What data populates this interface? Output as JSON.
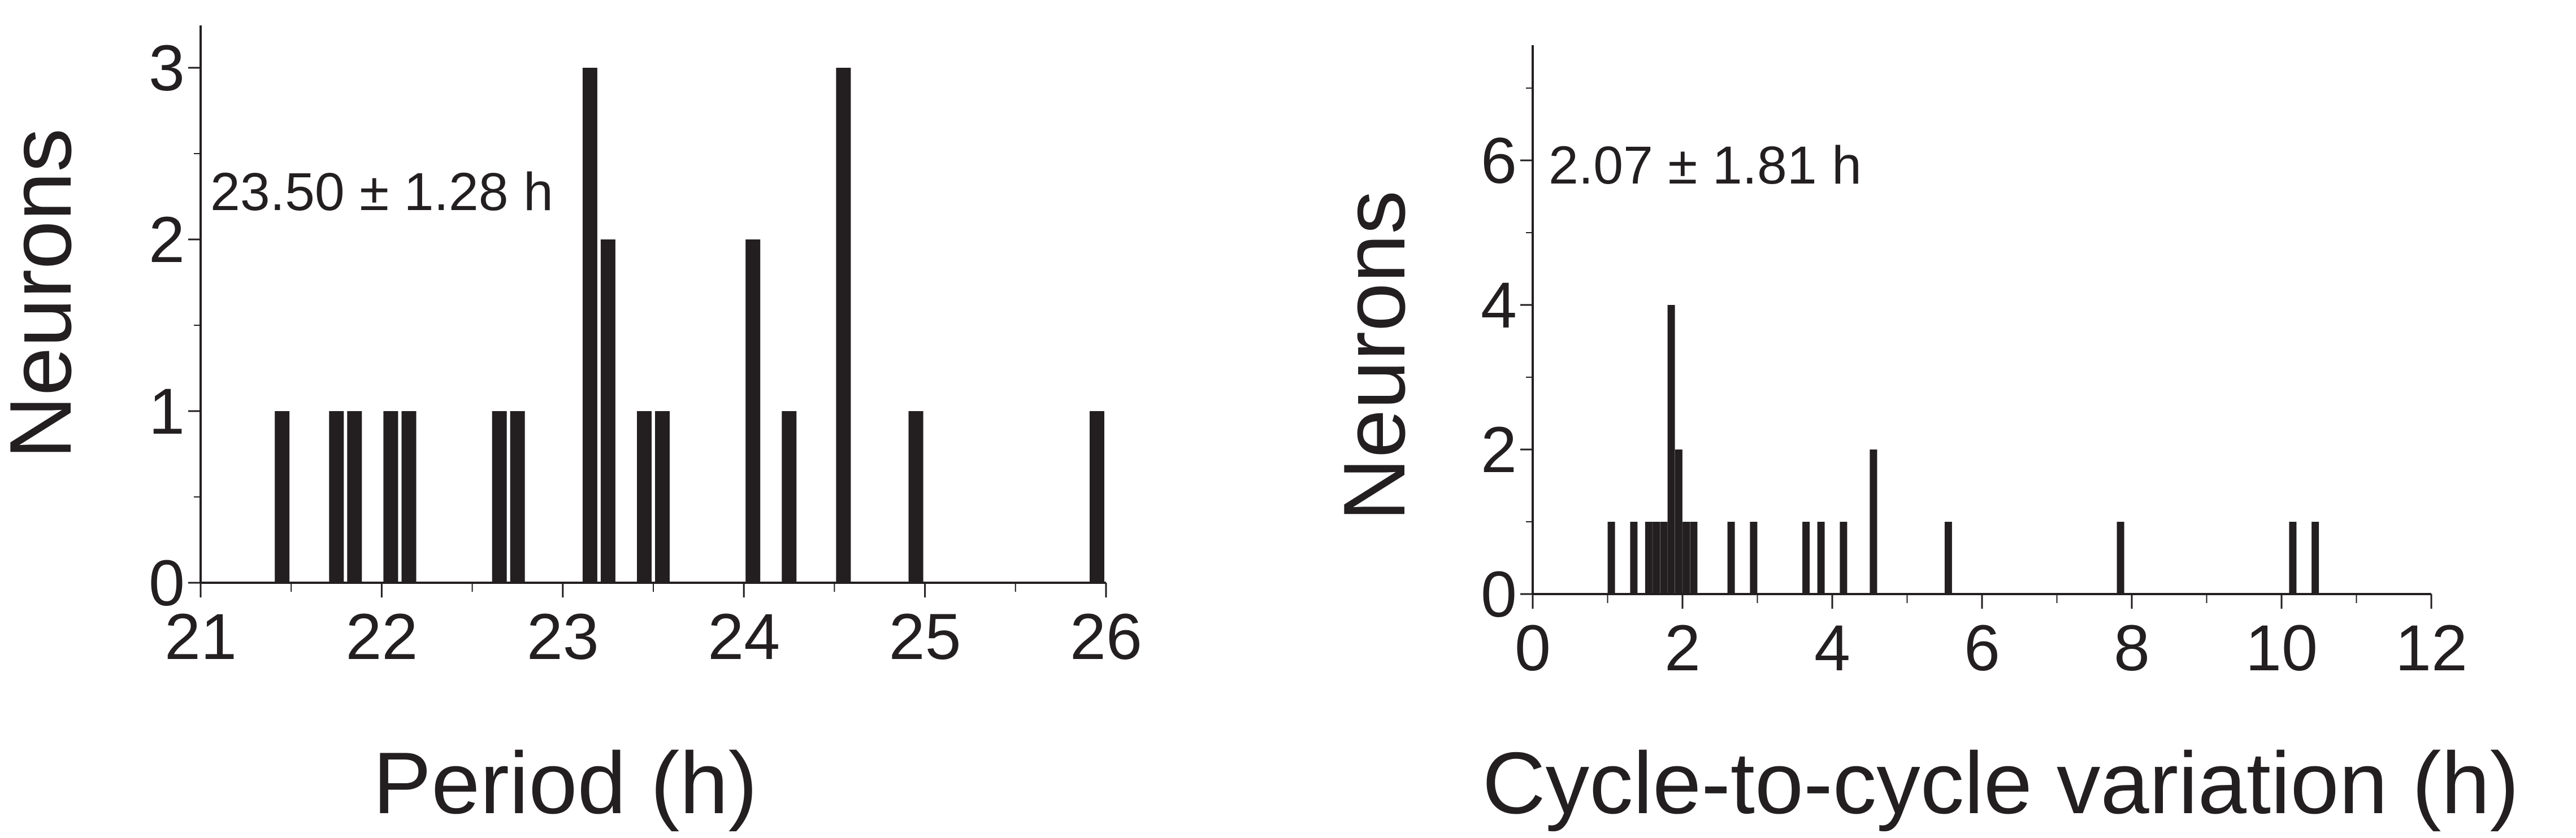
{
  "chart_data": [
    {
      "type": "bar",
      "title": "",
      "xlabel": "Period (h)",
      "ylabel": "Neurons",
      "annotation": "23.50 ± 1.28 h",
      "xlim": [
        21,
        26
      ],
      "ylim": [
        0,
        3
      ],
      "xticks": [
        "21",
        "22",
        "23",
        "24",
        "25",
        "26"
      ],
      "yticks": [
        "0",
        "1",
        "2",
        "3"
      ],
      "bar_color": "#231f20",
      "series": [
        {
          "x": [
            21.45,
            21.75,
            21.85,
            22.05,
            22.15,
            22.65,
            22.75,
            23.15,
            23.25,
            23.45,
            23.55,
            24.05,
            24.25,
            24.55,
            24.95,
            25.95
          ],
          "values": [
            1,
            1,
            1,
            1,
            1,
            1,
            1,
            3,
            2,
            1,
            1,
            2,
            1,
            3,
            1,
            1
          ]
        }
      ]
    },
    {
      "type": "bar",
      "title": "",
      "xlabel": "Cycle-to-cycle variation (h)",
      "ylabel": "Neurons",
      "annotation": "2.07 ± 1.81 h",
      "xlim": [
        0,
        12
      ],
      "ylim": [
        0,
        7.5
      ],
      "xticks": [
        "0",
        "2",
        "4",
        "6",
        "8",
        "10",
        "12"
      ],
      "yticks": [
        "0",
        "2",
        "4",
        "6"
      ],
      "bar_color": "#231f20",
      "series": [
        {
          "x": [
            1.05,
            1.35,
            1.55,
            1.65,
            1.75,
            1.85,
            1.95,
            2.05,
            2.15,
            2.65,
            2.95,
            3.65,
            3.85,
            4.15,
            4.55,
            5.55,
            7.85,
            10.15,
            10.45
          ],
          "values": [
            1,
            1,
            1,
            1,
            1,
            4,
            2,
            1,
            1,
            1,
            1,
            1,
            1,
            1,
            2,
            1,
            1,
            1,
            1
          ]
        }
      ]
    }
  ]
}
